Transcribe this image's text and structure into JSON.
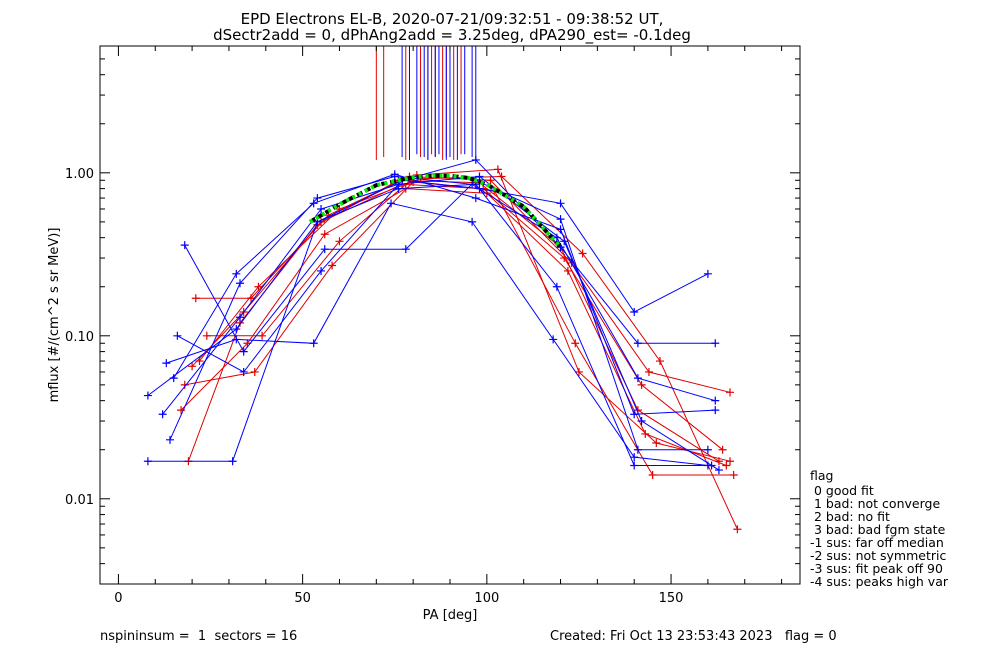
{
  "title_line1": "EPD Electrons EL-B, 2020-07-21/09:32:51 - 09:38:52 UT,",
  "title_line2": "dSectr2add = 0, dPhAng2add = 3.25deg, dPA290_est=  -0.1deg",
  "footer_left": "nspininsum =  1  sectors = 16",
  "footer_right": "Created: Fri Oct 13 23:53:43 2023   flag = 0",
  "flag_legend": {
    "title": "flag",
    "items": [
      " 0 good fit",
      " 1 bad: not converge",
      " 2 bad: no fit",
      " 3 bad: bad fgm state",
      "-1 sus: far off median",
      "-2 sus: not symmetric",
      "-3 sus: fit peak off 90",
      "-4 sus: peaks high var"
    ]
  },
  "colors": {
    "series_red": "#e00000",
    "series_blue": "#0000ff",
    "fit_green": "#00ee00",
    "fit_black": "#000000"
  },
  "chart_data": {
    "type": "line",
    "xlabel": "PA [deg]",
    "ylabel": "mflux [#/(cm^2 s sr MeV)]",
    "xlim": [
      -5,
      185
    ],
    "ylim": [
      0.003,
      6
    ],
    "yscale": "log",
    "xticks": [
      0,
      50,
      100,
      150
    ],
    "xtick_labels": [
      "0",
      "50",
      "100",
      "150"
    ],
    "yticks": [
      0.01,
      0.1,
      1.0
    ],
    "ytick_labels": [
      "0.01",
      "0.10",
      "1.00"
    ],
    "markers": "+",
    "series": [
      {
        "color": "red",
        "x": [
          19,
          33,
          54,
          76,
          98,
          120,
          141,
          163
        ],
        "y": [
          0.017,
          0.12,
          0.48,
          0.9,
          0.87,
          0.35,
          0.035,
          0.017
        ]
      },
      {
        "color": "red",
        "x": [
          20,
          34,
          55,
          77,
          99,
          121,
          142,
          164
        ],
        "y": [
          0.065,
          0.14,
          0.5,
          0.85,
          0.8,
          0.3,
          0.05,
          0.02
        ]
      },
      {
        "color": "red",
        "x": [
          21,
          36,
          57,
          79,
          101,
          123,
          144,
          166
        ],
        "y": [
          0.17,
          0.17,
          0.55,
          0.95,
          0.9,
          0.28,
          0.06,
          0.045
        ]
      },
      {
        "color": "red",
        "x": [
          17,
          35,
          56,
          78,
          100,
          122,
          143,
          165
        ],
        "y": [
          0.035,
          0.09,
          0.42,
          0.8,
          0.75,
          0.25,
          0.025,
          0.016
        ]
      },
      {
        "color": "red",
        "x": [
          22,
          38,
          60,
          82,
          104,
          126,
          147,
          168
        ],
        "y": [
          0.07,
          0.2,
          0.6,
          0.92,
          0.95,
          0.32,
          0.07,
          0.0065
        ]
      },
      {
        "color": "red",
        "x": [
          18,
          37,
          58,
          80,
          102,
          124,
          145,
          167
        ],
        "y": [
          0.05,
          0.06,
          0.27,
          0.88,
          0.78,
          0.09,
          0.014,
          0.014
        ]
      },
      {
        "color": "red",
        "x": [
          24,
          39,
          60,
          81,
          103,
          125,
          146,
          166
        ],
        "y": [
          0.1,
          0.1,
          0.38,
          0.97,
          1.05,
          0.06,
          0.022,
          0.017
        ]
      },
      {
        "color": "blue",
        "x": [
          8,
          32,
          54,
          77,
          97,
          120,
          141,
          162
        ],
        "y": [
          0.043,
          0.11,
          0.5,
          0.9,
          1.2,
          0.35,
          0.09,
          0.09
        ]
      },
      {
        "color": "blue",
        "x": [
          12,
          33,
          55,
          76,
          98,
          121,
          142,
          163
        ],
        "y": [
          0.033,
          0.13,
          0.6,
          0.85,
          0.95,
          0.38,
          0.03,
          0.015
        ]
      },
      {
        "color": "blue",
        "x": [
          18,
          34,
          56,
          78,
          97,
          120,
          141,
          160
        ],
        "y": [
          0.36,
          0.08,
          0.34,
          0.34,
          0.9,
          0.52,
          0.02,
          0.02
        ]
      },
      {
        "color": "blue",
        "x": [
          14,
          33,
          54,
          75,
          96,
          119,
          141,
          162
        ],
        "y": [
          0.023,
          0.21,
          0.7,
          0.95,
          0.85,
          0.4,
          0.055,
          0.04
        ]
      },
      {
        "color": "blue",
        "x": [
          16,
          34,
          55,
          77,
          98,
          120,
          140,
          160
        ],
        "y": [
          0.1,
          0.06,
          0.25,
          0.9,
          0.8,
          0.65,
          0.14,
          0.24
        ]
      },
      {
        "color": "blue",
        "x": [
          8,
          31,
          54,
          76,
          97,
          119,
          140,
          161
        ],
        "y": [
          0.017,
          0.017,
          0.5,
          0.8,
          0.85,
          0.2,
          0.016,
          0.016
        ]
      },
      {
        "color": "blue",
        "x": [
          13,
          32,
          53,
          74,
          96,
          118,
          140,
          160
        ],
        "y": [
          0.068,
          0.095,
          0.09,
          0.65,
          0.5,
          0.095,
          0.018,
          0.016
        ]
      },
      {
        "color": "blue",
        "x": [
          15,
          32,
          53,
          75,
          97,
          120,
          140,
          162
        ],
        "y": [
          0.055,
          0.24,
          0.65,
          0.98,
          0.7,
          0.45,
          0.033,
          0.035
        ]
      }
    ],
    "fit_curve": {
      "colors": [
        "#000000",
        "#00ee00"
      ],
      "x": [
        52,
        60,
        70,
        80,
        85,
        90,
        95,
        100,
        110,
        120
      ],
      "y": [
        0.5,
        0.64,
        0.84,
        0.94,
        0.96,
        0.96,
        0.93,
        0.85,
        0.62,
        0.35
      ]
    },
    "peak_markers": {
      "note_free": true,
      "red_x": [
        70,
        72,
        78,
        82,
        84,
        85,
        86,
        88,
        89,
        91,
        93
      ],
      "blue_x": [
        77,
        79,
        81,
        83,
        84,
        86,
        87,
        89,
        90,
        92,
        94,
        96,
        97
      ],
      "red_y_bottom": [
        1.2,
        1.25,
        1.2,
        1.25,
        1.2,
        1.3,
        1.25,
        1.2,
        1.25,
        1.2,
        1.3
      ],
      "blue_y_bottom": [
        1.25,
        1.2,
        1.3,
        1.25,
        1.2,
        1.25,
        1.3,
        1.2,
        1.25,
        1.2,
        1.3,
        1.25,
        1.2
      ]
    }
  }
}
